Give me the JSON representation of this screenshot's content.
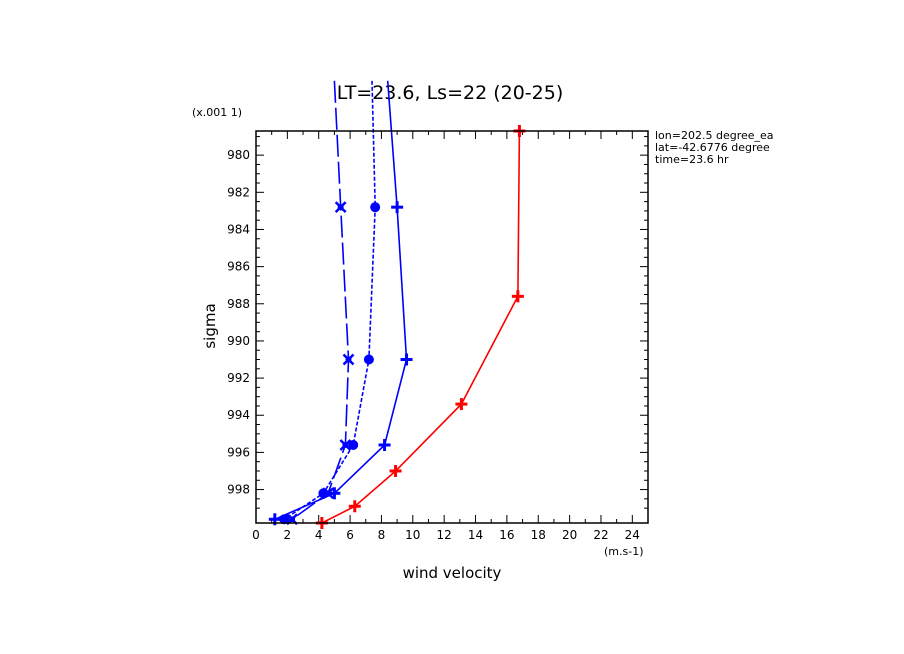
{
  "chart_data": {
    "type": "line",
    "title": "LT=23.6, Ls=22 (20-25)",
    "xlabel": "wind velocity",
    "ylabel": "sigma",
    "x_unit_label": "(m.s-1)",
    "y_unit_label": "(x.001 1)",
    "xlim": [
      0,
      25
    ],
    "ylim": [
      999.8,
      978.7
    ],
    "x_ticks": [
      0,
      2,
      4,
      6,
      8,
      10,
      12,
      14,
      16,
      18,
      20,
      22,
      24
    ],
    "y_ticks": [
      980,
      982,
      984,
      986,
      988,
      990,
      992,
      994,
      996,
      998
    ],
    "annotations": [
      "lon=202.5 degree_ea",
      "lat=-42.6776 degree",
      "time=23.6 hr"
    ],
    "series": [
      {
        "style": "long-dash",
        "color": "#0000ff",
        "marker": "x",
        "points": [
          {
            "x": 5.0,
            "y": 976.0
          },
          {
            "x": 5.4,
            "y": 982.8
          },
          {
            "x": 5.9,
            "y": 991.0
          },
          {
            "x": 5.7,
            "y": 995.6
          },
          {
            "x": 4.6,
            "y": 998.2
          },
          {
            "x": 2.3,
            "y": 999.6
          }
        ]
      },
      {
        "style": "dotted",
        "color": "#0000ff",
        "marker": "circle",
        "points": [
          {
            "x": 7.4,
            "y": 976.0
          },
          {
            "x": 7.6,
            "y": 982.8
          },
          {
            "x": 7.2,
            "y": 991.0
          },
          {
            "x": 6.2,
            "y": 995.6
          },
          {
            "x": 4.3,
            "y": 998.2
          },
          {
            "x": 1.8,
            "y": 999.6
          }
        ]
      },
      {
        "style": "solid",
        "color": "#0000ff",
        "marker": "plus",
        "points": [
          {
            "x": 8.4,
            "y": 976.0
          },
          {
            "x": 9.0,
            "y": 982.8
          },
          {
            "x": 9.6,
            "y": 991.0
          },
          {
            "x": 8.2,
            "y": 995.6
          },
          {
            "x": 5.0,
            "y": 998.2
          },
          {
            "x": 1.2,
            "y": 999.6
          }
        ]
      },
      {
        "style": "solid",
        "color": "#ff0000",
        "marker": "plus",
        "points": [
          {
            "x": 16.8,
            "y": 978.7
          },
          {
            "x": 16.7,
            "y": 987.6
          },
          {
            "x": 13.1,
            "y": 993.4
          },
          {
            "x": 8.9,
            "y": 997.0
          },
          {
            "x": 6.3,
            "y": 998.9
          },
          {
            "x": 4.2,
            "y": 999.8
          }
        ]
      }
    ]
  }
}
